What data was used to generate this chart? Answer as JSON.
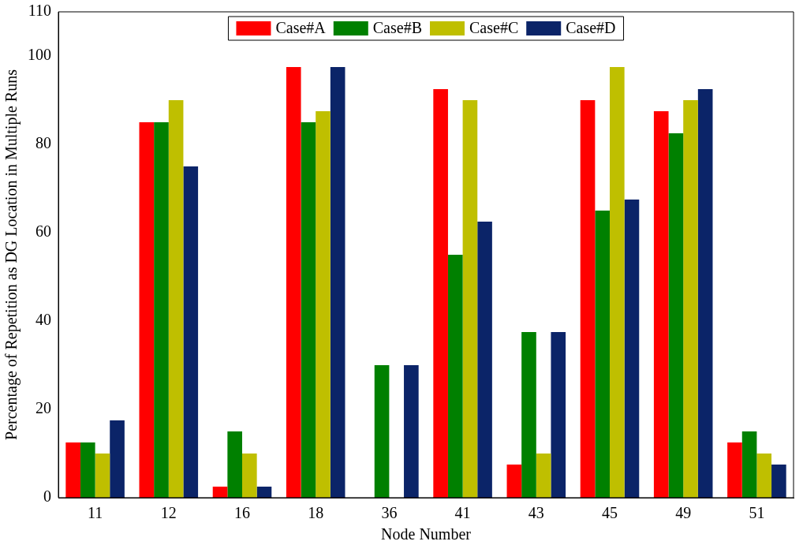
{
  "chart_data": {
    "type": "bar",
    "xlabel": "Node Number",
    "ylabel": "Percentage of Repetition as DG Location in Multiple Runs",
    "categories": [
      "11",
      "12",
      "16",
      "18",
      "36",
      "41",
      "43",
      "45",
      "49",
      "51"
    ],
    "series": [
      {
        "name": "Case#A",
        "color": "#ff0000",
        "values": [
          12.5,
          85,
          2.5,
          97.5,
          0,
          92.5,
          7.5,
          90,
          87.5,
          12.5
        ]
      },
      {
        "name": "Case#B",
        "color": "#008000",
        "values": [
          12.5,
          85,
          15,
          85,
          30,
          55,
          37.5,
          65,
          82.5,
          15
        ]
      },
      {
        "name": "Case#C",
        "color": "#bfbf00",
        "values": [
          10,
          90,
          10,
          87.5,
          0,
          90,
          10,
          97.5,
          90,
          10
        ]
      },
      {
        "name": "Case#D",
        "color": "#0b2468",
        "values": [
          17.5,
          75,
          2.5,
          97.5,
          30,
          62.5,
          37.5,
          67.5,
          92.5,
          7.5
        ]
      }
    ],
    "ylim": [
      0,
      110
    ],
    "yticks": [
      0,
      20,
      40,
      60,
      80,
      100,
      110
    ],
    "grid": false,
    "legend": "top"
  }
}
